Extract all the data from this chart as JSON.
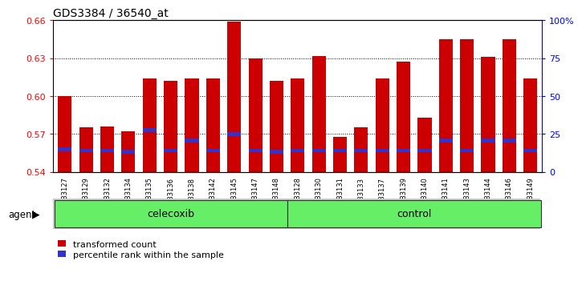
{
  "title": "GDS3384 / 36540_at",
  "samples": [
    "GSM283127",
    "GSM283129",
    "GSM283132",
    "GSM283134",
    "GSM283135",
    "GSM283136",
    "GSM283138",
    "GSM283142",
    "GSM283145",
    "GSM283147",
    "GSM283148",
    "GSM283128",
    "GSM283130",
    "GSM283131",
    "GSM283133",
    "GSM283137",
    "GSM283139",
    "GSM283140",
    "GSM283141",
    "GSM283143",
    "GSM283144",
    "GSM283146",
    "GSM283149"
  ],
  "bar_heights": [
    0.6,
    0.575,
    0.576,
    0.572,
    0.614,
    0.612,
    0.614,
    0.614,
    0.659,
    0.63,
    0.612,
    0.614,
    0.632,
    0.568,
    0.575,
    0.614,
    0.627,
    0.583,
    0.645,
    0.645,
    0.631,
    0.645,
    0.614
  ],
  "percentile_vals": [
    0.558,
    0.557,
    0.557,
    0.556,
    0.573,
    0.557,
    0.565,
    0.557,
    0.57,
    0.557,
    0.556,
    0.557,
    0.557,
    0.557,
    0.557,
    0.557,
    0.557,
    0.557,
    0.565,
    0.557,
    0.565,
    0.565,
    0.557
  ],
  "celecoxib_count": 11,
  "control_count": 12,
  "ymin": 0.54,
  "ymax": 0.66,
  "yticks_left": [
    0.54,
    0.57,
    0.6,
    0.63,
    0.66
  ],
  "yticks_right_pct": [
    0,
    25,
    50,
    75,
    100
  ],
  "yticks_right_labels": [
    "0",
    "25",
    "50",
    "75",
    "100%"
  ],
  "bar_color": "#CC0000",
  "blue_color": "#3333CC",
  "green_color": "#66EE66",
  "bg_color": "#FFFFFF",
  "agent_label": "agent",
  "celecoxib_label": "celecoxib",
  "control_label": "control",
  "legend_red": "transformed count",
  "legend_blue": "percentile rank within the sample"
}
